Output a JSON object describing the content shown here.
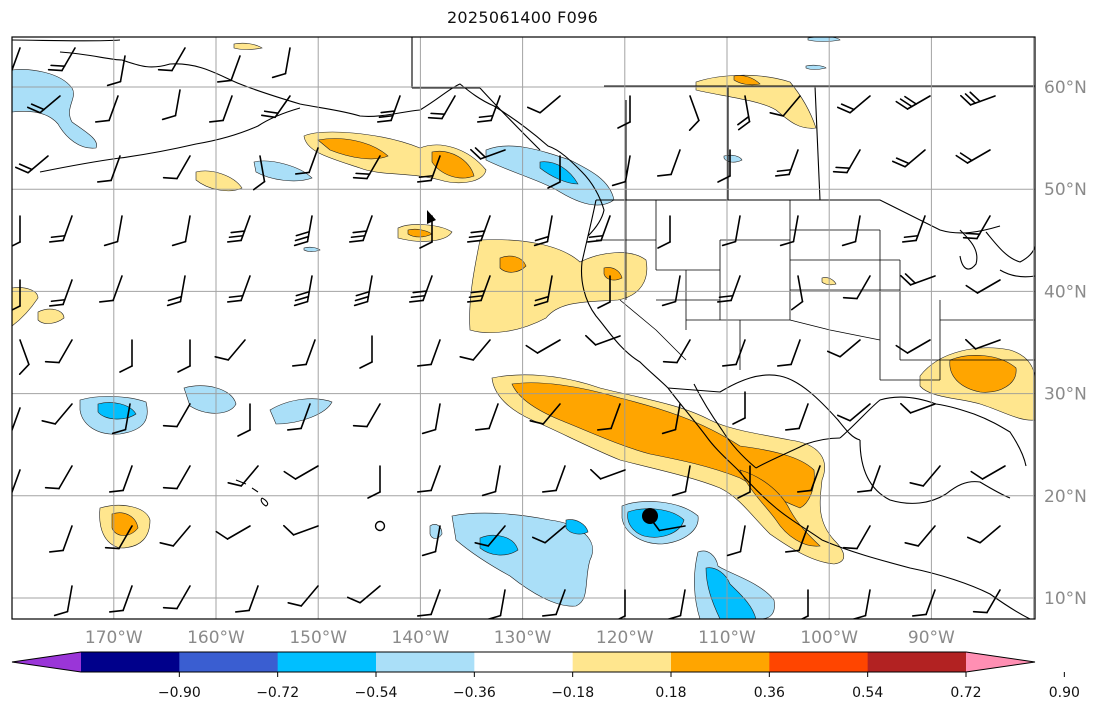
{
  "title": "2025061400 F096",
  "map": {
    "lon_labels": [
      "170°W",
      "160°W",
      "150°W",
      "140°W",
      "130°W",
      "120°W",
      "110°W",
      "100°W",
      "90°W"
    ],
    "lat_labels": [
      "60°N",
      "50°N",
      "40°N",
      "30°N",
      "20°N",
      "10°N"
    ],
    "lon_values": [
      -170,
      -160,
      -150,
      -140,
      -130,
      -120,
      -110,
      -100,
      -90
    ],
    "lat_values": [
      60,
      50,
      40,
      30,
      20,
      10
    ],
    "extent": {
      "lon_min": -180,
      "lon_max": -80,
      "lat_min": 8,
      "lat_max": 65
    },
    "grid": true,
    "features": [
      "coastlines",
      "country borders",
      "state borders",
      "wind barbs",
      "filled contours"
    ],
    "marker_center": {
      "lon": -117,
      "lat": 18
    }
  },
  "colorbar": {
    "labels": [
      "−0.90",
      "−0.72",
      "−0.54",
      "−0.36",
      "−0.18",
      "0.18",
      "0.36",
      "0.54",
      "0.72",
      "0.90"
    ],
    "levels": [
      -0.9,
      -0.72,
      -0.54,
      -0.36,
      -0.18,
      0.18,
      0.36,
      0.54,
      0.72,
      0.9
    ],
    "colors": [
      "#9a35d8",
      "#00008b",
      "#3a5ed1",
      "#00bfff",
      "#aadff8",
      "#ffffff",
      "#ffe68e",
      "#ffa500",
      "#ff4500",
      "#b22222",
      "#ff8fb3"
    ]
  },
  "fill_colors": {
    "neg_light": "#aadff8",
    "neg_mid": "#00bfff",
    "pos_light": "#ffe68e",
    "pos_mid": "#ffa500"
  }
}
